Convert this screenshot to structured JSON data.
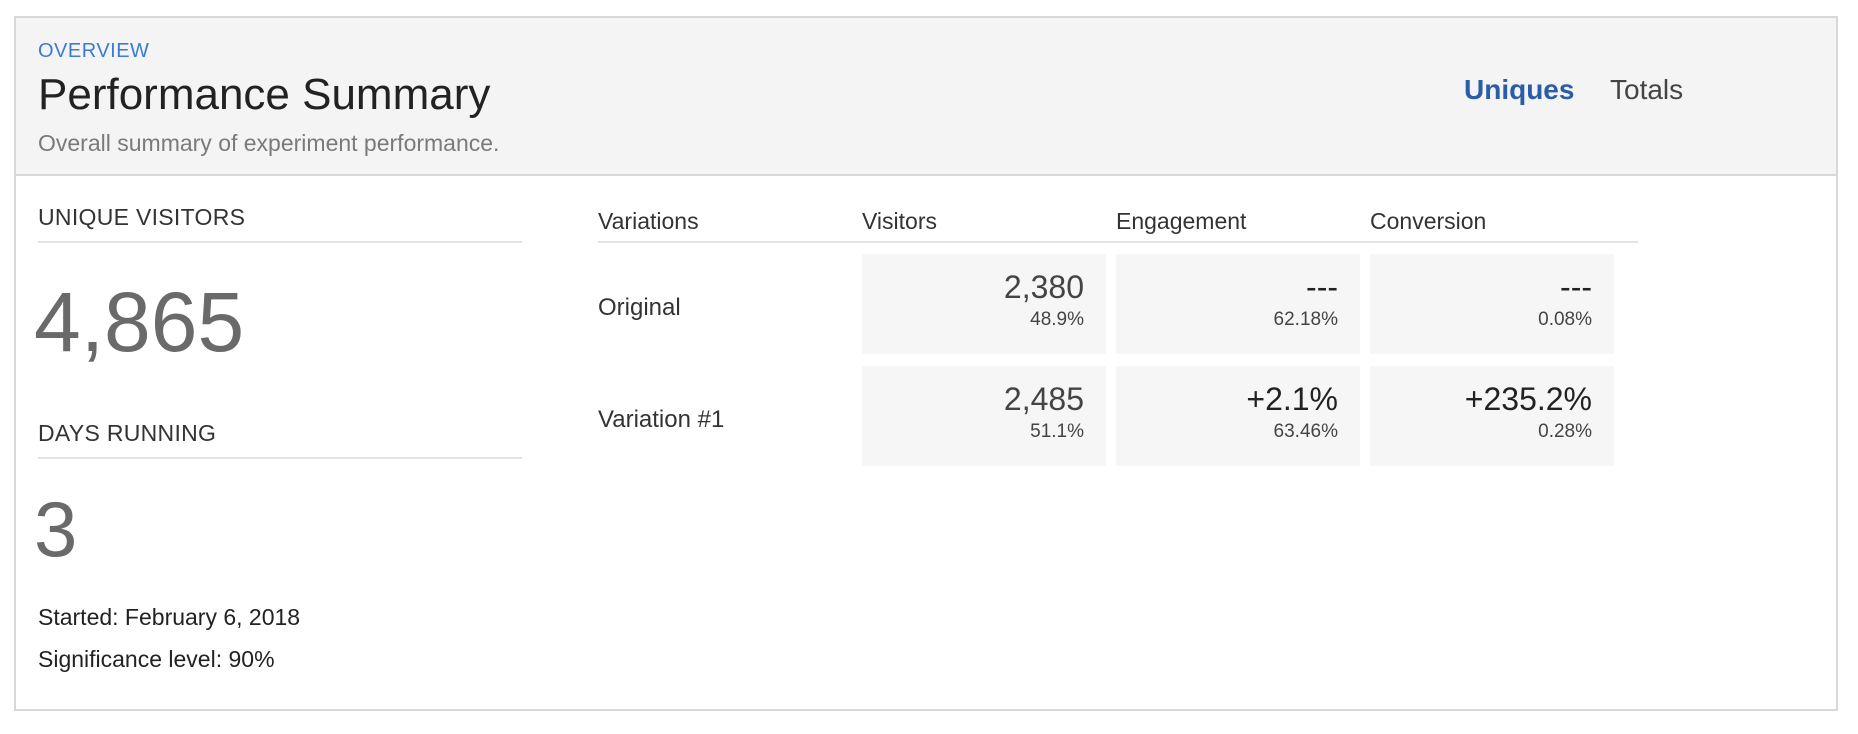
{
  "header": {
    "eyebrow": "OVERVIEW",
    "title": "Performance Summary",
    "subtitle": "Overall summary of experiment performance.",
    "toggle": {
      "options": [
        "Uniques",
        "Totals"
      ],
      "selected": "Uniques"
    },
    "accent_color": "#3b7bd4",
    "selected_color": "#2a5ca8"
  },
  "stats": {
    "unique_visitors": {
      "label": "UNIQUE VISITORS",
      "value": "4,865"
    },
    "days_running": {
      "label": "DAYS RUNNING",
      "value": "3"
    },
    "started": "Started: February 6, 2018",
    "significance": "Significance level: 90%"
  },
  "table": {
    "columns": [
      "Variations",
      "Visitors",
      "Engagement",
      "Conversion"
    ],
    "rows": [
      {
        "name": "Original",
        "visitors": {
          "main": "2,380",
          "sub": "48.9%"
        },
        "engagement": {
          "main": "---",
          "sub": "62.18%"
        },
        "conversion": {
          "main": "---",
          "sub": "0.08%"
        }
      },
      {
        "name": "Variation #1",
        "visitors": {
          "main": "2,485",
          "sub": "51.1%"
        },
        "engagement": {
          "main": "+2.1%",
          "sub": "63.46%"
        },
        "conversion": {
          "main": "+235.2%",
          "sub": "0.28%"
        }
      }
    ]
  }
}
